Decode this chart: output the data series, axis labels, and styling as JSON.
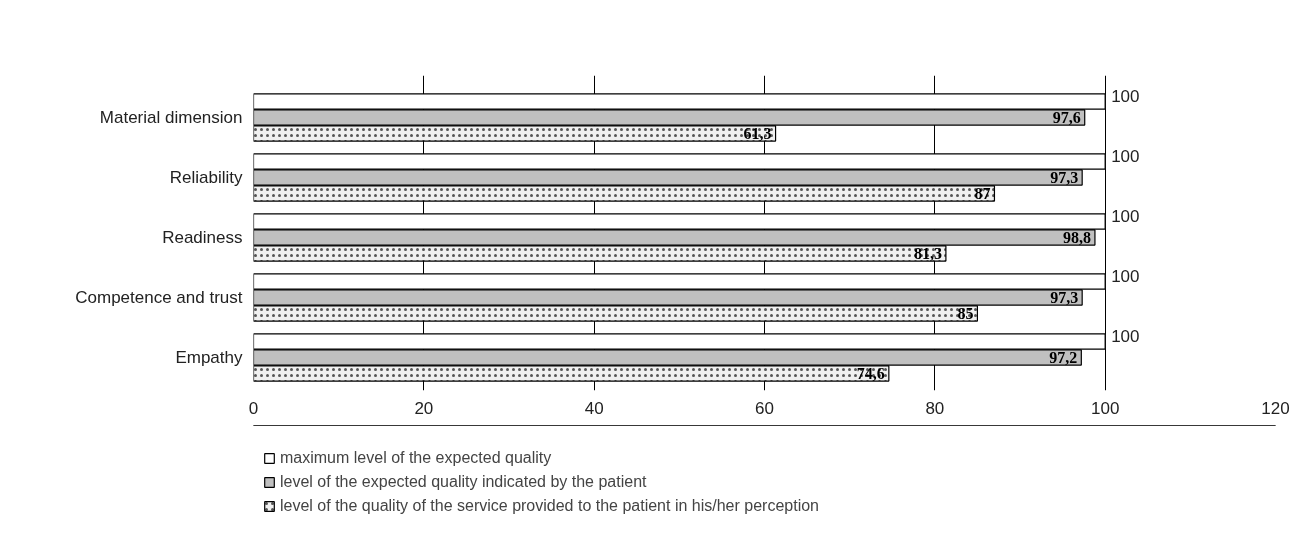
{
  "chart_data": {
    "type": "bar",
    "orientation": "horizontal",
    "categories": [
      "Material dimension",
      "Reliability",
      "Readiness",
      "Competence and trust",
      "Empathy"
    ],
    "series": [
      {
        "name": "maximum level of the expected quality",
        "color": "#ffffff",
        "values": [
          100,
          100,
          100,
          100,
          100
        ],
        "value_labels": [
          "100",
          "100",
          "100",
          "100",
          "100"
        ]
      },
      {
        "name": "level of the expected quality indicated by the patient",
        "color": "#c0c0c0",
        "values": [
          97.6,
          97.3,
          98.8,
          97.3,
          97.2
        ],
        "value_labels": [
          "97,6",
          "97,3",
          "98,8",
          "97,3",
          "97,2"
        ]
      },
      {
        "name": "level of the quality of the service provided to the patient in his/her perception",
        "color": "#f0f0f0",
        "values": [
          61.3,
          87,
          81.3,
          85,
          74.6
        ],
        "value_labels": [
          "61,3",
          "87",
          "81,3",
          "85",
          "74,6"
        ]
      }
    ],
    "xlim": [
      0,
      120
    ],
    "xticks": [
      0,
      20,
      40,
      60,
      80,
      100,
      120
    ],
    "grid": "x",
    "legend": "bottom"
  }
}
